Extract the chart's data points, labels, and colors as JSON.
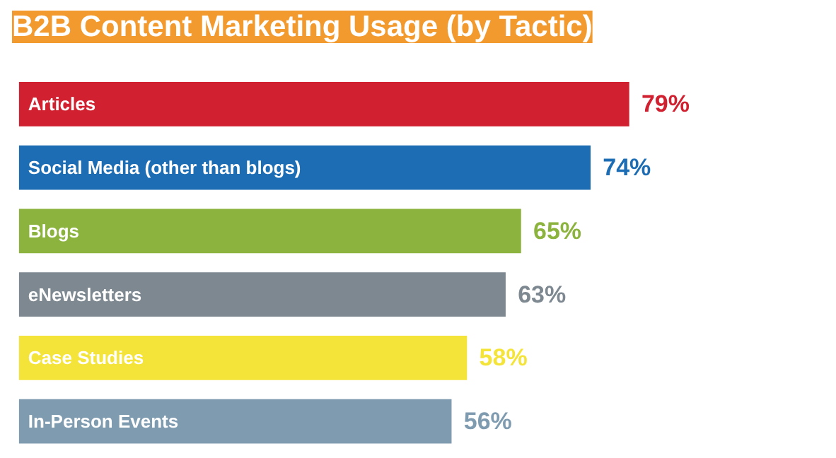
{
  "chart_data": {
    "type": "bar",
    "orientation": "horizontal",
    "title": "B2B Content Marketing Usage (by Tactic)",
    "categories": [
      "Articles",
      "Social Media (other than blogs)",
      "Blogs",
      "eNewsletters",
      "Case Studies",
      "In-Person Events"
    ],
    "values": [
      79,
      74,
      65,
      63,
      58,
      56
    ],
    "value_labels": [
      "79%",
      "74%",
      "65%",
      "63%",
      "58%",
      "56%"
    ],
    "colors": [
      "#d1202f",
      "#1c6db3",
      "#8cb33e",
      "#7d8890",
      "#f4e43a",
      "#7f9bb0"
    ]
  }
}
